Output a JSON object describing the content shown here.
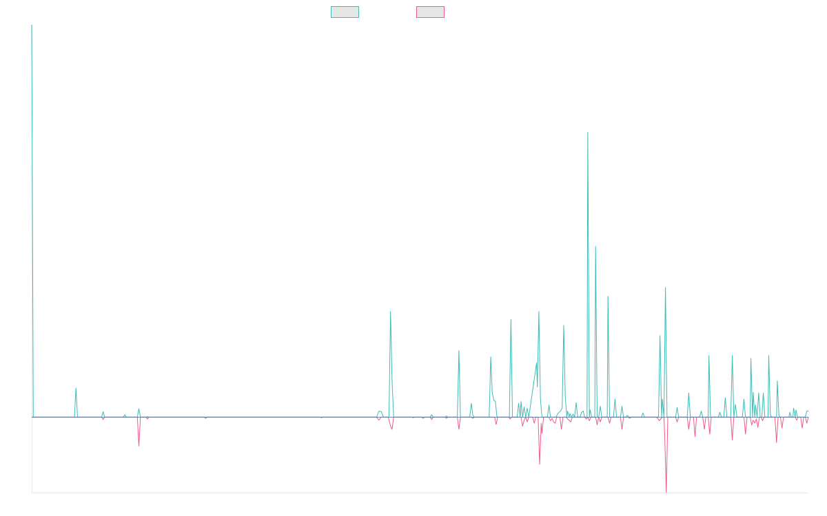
{
  "colors": {
    "series_up": "#3cbcb4",
    "series_down": "#ef5b84",
    "legend_fill": "#e6e6e6",
    "axis": "#e8e8e8",
    "baseline": "#5f7f9a",
    "background": "#ffffff"
  },
  "chart_data": {
    "type": "line",
    "title": "",
    "xlabel": "",
    "ylabel": "",
    "legend": {
      "placement": "top-center"
    },
    "grid": false,
    "xlim": [
      0,
      1000
    ],
    "ylim": [
      -0.125,
      0.65
    ],
    "series": [
      {
        "color": "#3cbcb4",
        "direction": "up",
        "points": [
          [
            0,
            0.65
          ],
          [
            2,
            0
          ],
          [
            55,
            0
          ],
          [
            57,
            0.048
          ],
          [
            59,
            0
          ],
          [
            90,
            0
          ],
          [
            92,
            0.009
          ],
          [
            94,
            0
          ],
          [
            118,
            0
          ],
          [
            120,
            0.004
          ],
          [
            122,
            0
          ],
          [
            136,
            0
          ],
          [
            138,
            0.014
          ],
          [
            140,
            0
          ],
          [
            148,
            0
          ],
          [
            149,
            0.001
          ],
          [
            150,
            0
          ],
          [
            444,
            0
          ],
          [
            447,
            0.01
          ],
          [
            450,
            0.009
          ],
          [
            453,
            0
          ],
          [
            460,
            0
          ],
          [
            462,
            0.175
          ],
          [
            464,
            0.06
          ],
          [
            466,
            0
          ],
          [
            513,
            0
          ],
          [
            515,
            0.004
          ],
          [
            517,
            0
          ],
          [
            532,
            0
          ],
          [
            534,
            0.002
          ],
          [
            536,
            0
          ],
          [
            548,
            0
          ],
          [
            550,
            0.11
          ],
          [
            552,
            0
          ],
          [
            564,
            0
          ],
          [
            566,
            0.023
          ],
          [
            568,
            0.003
          ],
          [
            570,
            0
          ],
          [
            589,
            0
          ],
          [
            591,
            0.1
          ],
          [
            593,
            0.04
          ],
          [
            595,
            0.028
          ],
          [
            597,
            0.026
          ],
          [
            599,
            0
          ],
          [
            615,
            0
          ],
          [
            617,
            0.162
          ],
          [
            619,
            0
          ],
          [
            625,
            0
          ],
          [
            627,
            0.023
          ],
          [
            629,
            0
          ],
          [
            630,
            0.026
          ],
          [
            632,
            0
          ],
          [
            634,
            0.017
          ],
          [
            636,
            0
          ],
          [
            638,
            0.015
          ],
          [
            640,
            0
          ],
          [
            650,
            0.09
          ],
          [
            651,
            0.05
          ],
          [
            653,
            0.175
          ],
          [
            655,
            0.03
          ],
          [
            657,
            0
          ],
          [
            664,
            0
          ],
          [
            666,
            0.02
          ],
          [
            668,
            0
          ],
          [
            675,
            0
          ],
          [
            677,
            0.005
          ],
          [
            679,
            0.008
          ],
          [
            681,
            0.01
          ],
          [
            683,
            0.015
          ],
          [
            685,
            0.152
          ],
          [
            687,
            0.034
          ],
          [
            689,
            0
          ],
          [
            690,
            0.01
          ],
          [
            692,
            0
          ],
          [
            693,
            0.006
          ],
          [
            695,
            0
          ],
          [
            697,
            0.005
          ],
          [
            699,
            0
          ],
          [
            701,
            0.024
          ],
          [
            703,
            0
          ],
          [
            706,
            0
          ],
          [
            708,
            0.008
          ],
          [
            710,
            0.01
          ],
          [
            712,
            0
          ],
          [
            715,
            0
          ],
          [
            716,
            0.472
          ],
          [
            718,
            0
          ],
          [
            719,
            0.012
          ],
          [
            721,
            0
          ],
          [
            725,
            0
          ],
          [
            726,
            0.283
          ],
          [
            728,
            0
          ],
          [
            730,
            0
          ],
          [
            732,
            0.018
          ],
          [
            734,
            0
          ],
          [
            741,
            0
          ],
          [
            742,
            0.2
          ],
          [
            744,
            0
          ],
          [
            749,
            0
          ],
          [
            751,
            0.03
          ],
          [
            753,
            0
          ],
          [
            758,
            0
          ],
          [
            760,
            0.018
          ],
          [
            762,
            0
          ],
          [
            765,
            0
          ],
          [
            767,
            0.003
          ],
          [
            769,
            0
          ],
          [
            785,
            0
          ],
          [
            787,
            0.007
          ],
          [
            789,
            0
          ],
          [
            807,
            0
          ],
          [
            809,
            0.135
          ],
          [
            811,
            0
          ],
          [
            812,
            0.03
          ],
          [
            814,
            0
          ],
          [
            816,
            0.215
          ],
          [
            818,
            0
          ],
          [
            829,
            0
          ],
          [
            831,
            0.016
          ],
          [
            833,
            0
          ],
          [
            844,
            0
          ],
          [
            846,
            0.04
          ],
          [
            848,
            0
          ],
          [
            860,
            0
          ],
          [
            862,
            0.01
          ],
          [
            864,
            0
          ],
          [
            871,
            0
          ],
          [
            872,
            0.102
          ],
          [
            874,
            0
          ],
          [
            884,
            0
          ],
          [
            886,
            0.008
          ],
          [
            888,
            0
          ],
          [
            891,
            0
          ],
          [
            893,
            0.032
          ],
          [
            895,
            0
          ],
          [
            900,
            0
          ],
          [
            902,
            0.102
          ],
          [
            904,
            0
          ],
          [
            906,
            0.021
          ],
          [
            908,
            0
          ],
          [
            915,
            0
          ],
          [
            917,
            0.03
          ],
          [
            919,
            0
          ],
          [
            925,
            0
          ],
          [
            926,
            0.097
          ],
          [
            928,
            0
          ],
          [
            929,
            0.041
          ],
          [
            931,
            0
          ],
          [
            932,
            0.02
          ],
          [
            934,
            0
          ],
          [
            936,
            0.04
          ],
          [
            938,
            0
          ],
          [
            940,
            0
          ],
          [
            942,
            0.04
          ],
          [
            944,
            0
          ],
          [
            948,
            0
          ],
          [
            949,
            0.102
          ],
          [
            951,
            0.003
          ],
          [
            953,
            0
          ],
          [
            959,
            0
          ],
          [
            960,
            0.06
          ],
          [
            962,
            0.003
          ],
          [
            964,
            0
          ],
          [
            975,
            0
          ],
          [
            976,
            0.008
          ],
          [
            978,
            0
          ],
          [
            980,
            0
          ],
          [
            981,
            0.015
          ],
          [
            983,
            0
          ],
          [
            984,
            0.012
          ],
          [
            986,
            0
          ],
          [
            996,
            0
          ],
          [
            998,
            0.01
          ],
          [
            1000,
            0.01
          ]
        ]
      },
      {
        "color": "#ef5b84",
        "direction": "down",
        "points": [
          [
            0,
            0
          ],
          [
            90,
            0
          ],
          [
            92,
            -0.004
          ],
          [
            94,
            0
          ],
          [
            136,
            0
          ],
          [
            138,
            -0.048
          ],
          [
            140,
            0
          ],
          [
            147,
            0
          ],
          [
            149,
            -0.003
          ],
          [
            151,
            0
          ],
          [
            222,
            0
          ],
          [
            224,
            -0.002
          ],
          [
            226,
            0
          ],
          [
            371,
            0
          ],
          [
            373,
            -0.001
          ],
          [
            375,
            0
          ],
          [
            444,
            0
          ],
          [
            447,
            -0.005
          ],
          [
            450,
            0
          ],
          [
            459,
            0
          ],
          [
            462,
            -0.015
          ],
          [
            464,
            -0.02
          ],
          [
            466,
            0
          ],
          [
            489,
            0
          ],
          [
            491,
            -0.001
          ],
          [
            493,
            0
          ],
          [
            502,
            0
          ],
          [
            504,
            -0.002
          ],
          [
            506,
            0
          ],
          [
            513,
            0
          ],
          [
            515,
            -0.004
          ],
          [
            517,
            0
          ],
          [
            532,
            0
          ],
          [
            534,
            -0.002
          ],
          [
            536,
            0
          ],
          [
            548,
            0
          ],
          [
            550,
            -0.02
          ],
          [
            552,
            0
          ],
          [
            566,
            0
          ],
          [
            568,
            -0.002
          ],
          [
            570,
            0
          ],
          [
            596,
            0
          ],
          [
            598,
            -0.012
          ],
          [
            600,
            0
          ],
          [
            614,
            0
          ],
          [
            616,
            -0.003
          ],
          [
            618,
            0
          ],
          [
            630,
            0
          ],
          [
            632,
            -0.015
          ],
          [
            634,
            -0.005
          ],
          [
            636,
            0
          ],
          [
            638,
            -0.008
          ],
          [
            640,
            0
          ],
          [
            645,
            0
          ],
          [
            647,
            -0.01
          ],
          [
            649,
            0
          ],
          [
            652,
            0
          ],
          [
            654,
            -0.078
          ],
          [
            656,
            -0.01
          ],
          [
            657,
            -0.027
          ],
          [
            659,
            0
          ],
          [
            666,
            0
          ],
          [
            668,
            -0.006
          ],
          [
            670,
            -0.002
          ],
          [
            672,
            -0.008
          ],
          [
            674,
            -0.01
          ],
          [
            676,
            0
          ],
          [
            680,
            0
          ],
          [
            682,
            -0.02
          ],
          [
            684,
            0
          ],
          [
            688,
            0
          ],
          [
            690,
            -0.003
          ],
          [
            692,
            -0.005
          ],
          [
            694,
            -0.008
          ],
          [
            696,
            0
          ],
          [
            712,
            0
          ],
          [
            714,
            -0.003
          ],
          [
            716,
            0
          ],
          [
            718,
            -0.006
          ],
          [
            720,
            0
          ],
          [
            726,
            0
          ],
          [
            728,
            -0.013
          ],
          [
            730,
            0
          ],
          [
            732,
            -0.008
          ],
          [
            734,
            0
          ],
          [
            742,
            0
          ],
          [
            744,
            -0.01
          ],
          [
            746,
            0
          ],
          [
            758,
            0
          ],
          [
            760,
            -0.02
          ],
          [
            762,
            0
          ],
          [
            768,
            0
          ],
          [
            770,
            -0.002
          ],
          [
            772,
            0
          ],
          [
            804,
            0
          ],
          [
            806,
            -0.002
          ],
          [
            808,
            -0.006
          ],
          [
            810,
            -0.003
          ],
          [
            812,
            0
          ],
          [
            814,
            0
          ],
          [
            815,
            -0.03
          ],
          [
            817,
            -0.125
          ],
          [
            819,
            0
          ],
          [
            829,
            0
          ],
          [
            831,
            -0.008
          ],
          [
            833,
            0
          ],
          [
            844,
            0
          ],
          [
            846,
            -0.02
          ],
          [
            848,
            0
          ],
          [
            852,
            0
          ],
          [
            854,
            -0.032
          ],
          [
            856,
            0
          ],
          [
            864,
            0
          ],
          [
            866,
            -0.02
          ],
          [
            868,
            0
          ],
          [
            871,
            0
          ],
          [
            873,
            -0.028
          ],
          [
            875,
            0
          ],
          [
            900,
            0
          ],
          [
            902,
            -0.038
          ],
          [
            904,
            0
          ],
          [
            917,
            0
          ],
          [
            919,
            -0.028
          ],
          [
            921,
            0
          ],
          [
            925,
            0
          ],
          [
            927,
            -0.013
          ],
          [
            929,
            -0.005
          ],
          [
            931,
            -0.01
          ],
          [
            933,
            -0.003
          ],
          [
            935,
            -0.017
          ],
          [
            937,
            0
          ],
          [
            939,
            0
          ],
          [
            941,
            -0.006
          ],
          [
            943,
            0
          ],
          [
            957,
            0
          ],
          [
            959,
            -0.042
          ],
          [
            961,
            0
          ],
          [
            964,
            0
          ],
          [
            966,
            -0.018
          ],
          [
            968,
            0
          ],
          [
            983,
            0
          ],
          [
            985,
            -0.005
          ],
          [
            987,
            0
          ],
          [
            990,
            0
          ],
          [
            992,
            -0.018
          ],
          [
            994,
            0
          ],
          [
            996,
            0
          ],
          [
            998,
            -0.01
          ],
          [
            1000,
            0
          ]
        ]
      }
    ]
  }
}
